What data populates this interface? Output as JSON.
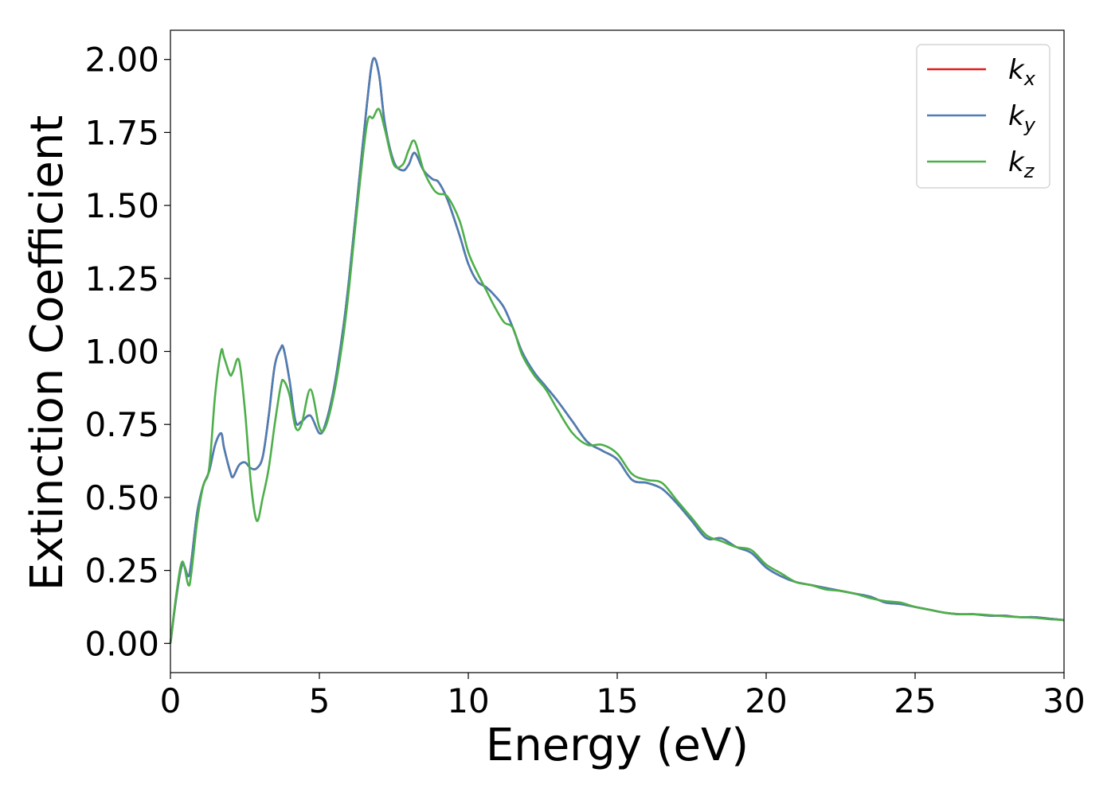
{
  "chart_data": {
    "type": "line",
    "title": "",
    "xlabel": "Energy (eV)",
    "ylabel": "Extinction Coefficient",
    "xlim": [
      0,
      30
    ],
    "ylim": [
      -0.1,
      2.1
    ],
    "xticks": [
      0,
      5,
      10,
      15,
      20,
      25,
      30
    ],
    "xtick_labels": [
      "0",
      "5",
      "10",
      "15",
      "20",
      "25",
      "30"
    ],
    "yticks": [
      0.0,
      0.25,
      0.5,
      0.75,
      1.0,
      1.25,
      1.5,
      1.75,
      2.0
    ],
    "ytick_labels": [
      "0.00",
      "0.25",
      "0.50",
      "0.75",
      "1.00",
      "1.25",
      "1.50",
      "1.75",
      "2.00"
    ],
    "grid": false,
    "legend_position": "top-right",
    "series": [
      {
        "name": "k_x",
        "label_main": "k",
        "label_sub": "x",
        "color": "#e41a1c",
        "x": [
          0,
          0.2,
          0.4,
          0.6,
          0.7,
          0.9,
          1.1,
          1.3,
          1.5,
          1.7,
          1.8,
          2.0,
          2.1,
          2.3,
          2.5,
          2.7,
          2.9,
          3.1,
          3.3,
          3.5,
          3.7,
          3.8,
          4.0,
          4.2,
          4.4,
          4.7,
          5.0,
          5.2,
          5.5,
          5.8,
          6.0,
          6.3,
          6.6,
          6.8,
          7.0,
          7.2,
          7.5,
          7.8,
          8.0,
          8.2,
          8.5,
          8.8,
          9.0,
          9.3,
          9.7,
          10.0,
          10.3,
          10.6,
          10.9,
          11.2,
          11.5,
          11.8,
          12.2,
          12.6,
          13.0,
          13.5,
          14.0,
          14.5,
          15.0,
          15.5,
          16.0,
          16.5,
          17.0,
          17.5,
          18.0,
          18.5,
          19.0,
          19.5,
          20.0,
          20.5,
          21.0,
          21.5,
          22.0,
          22.5,
          23.0,
          23.5,
          24.0,
          24.5,
          25.0,
          25.5,
          26.0,
          26.5,
          27.0,
          27.5,
          28.0,
          28.5,
          29.0,
          29.5,
          30.0
        ],
        "y": [
          0.0,
          0.16,
          0.27,
          0.23,
          0.28,
          0.45,
          0.54,
          0.59,
          0.68,
          0.72,
          0.67,
          0.59,
          0.57,
          0.61,
          0.62,
          0.6,
          0.6,
          0.64,
          0.78,
          0.95,
          1.01,
          1.01,
          0.9,
          0.76,
          0.76,
          0.78,
          0.72,
          0.75,
          0.88,
          1.08,
          1.25,
          1.55,
          1.85,
          2.0,
          1.95,
          1.78,
          1.65,
          1.62,
          1.64,
          1.68,
          1.62,
          1.59,
          1.58,
          1.52,
          1.4,
          1.3,
          1.24,
          1.22,
          1.19,
          1.15,
          1.08,
          1.0,
          0.93,
          0.88,
          0.83,
          0.76,
          0.69,
          0.66,
          0.63,
          0.56,
          0.55,
          0.53,
          0.48,
          0.42,
          0.36,
          0.36,
          0.33,
          0.31,
          0.26,
          0.23,
          0.21,
          0.2,
          0.19,
          0.18,
          0.17,
          0.16,
          0.14,
          0.135,
          0.125,
          0.115,
          0.105,
          0.1,
          0.1,
          0.095,
          0.095,
          0.09,
          0.09,
          0.085,
          0.08
        ]
      },
      {
        "name": "k_y",
        "label_main": "k",
        "label_sub": "y",
        "color": "#4a7fb5",
        "x": [
          0,
          0.2,
          0.4,
          0.6,
          0.7,
          0.9,
          1.1,
          1.3,
          1.5,
          1.7,
          1.8,
          2.0,
          2.1,
          2.3,
          2.5,
          2.7,
          2.9,
          3.1,
          3.3,
          3.5,
          3.7,
          3.8,
          4.0,
          4.2,
          4.4,
          4.7,
          5.0,
          5.2,
          5.5,
          5.8,
          6.0,
          6.3,
          6.6,
          6.8,
          7.0,
          7.2,
          7.5,
          7.8,
          8.0,
          8.2,
          8.5,
          8.8,
          9.0,
          9.3,
          9.7,
          10.0,
          10.3,
          10.6,
          10.9,
          11.2,
          11.5,
          11.8,
          12.2,
          12.6,
          13.0,
          13.5,
          14.0,
          14.5,
          15.0,
          15.5,
          16.0,
          16.5,
          17.0,
          17.5,
          18.0,
          18.5,
          19.0,
          19.5,
          20.0,
          20.5,
          21.0,
          21.5,
          22.0,
          22.5,
          23.0,
          23.5,
          24.0,
          24.5,
          25.0,
          25.5,
          26.0,
          26.5,
          27.0,
          27.5,
          28.0,
          28.5,
          29.0,
          29.5,
          30.0
        ],
        "y": [
          0.0,
          0.16,
          0.27,
          0.23,
          0.28,
          0.45,
          0.54,
          0.59,
          0.68,
          0.72,
          0.67,
          0.59,
          0.57,
          0.61,
          0.62,
          0.6,
          0.6,
          0.64,
          0.78,
          0.95,
          1.01,
          1.01,
          0.9,
          0.76,
          0.76,
          0.78,
          0.72,
          0.75,
          0.88,
          1.08,
          1.25,
          1.55,
          1.85,
          2.0,
          1.95,
          1.78,
          1.65,
          1.62,
          1.64,
          1.68,
          1.62,
          1.59,
          1.58,
          1.52,
          1.4,
          1.3,
          1.24,
          1.22,
          1.19,
          1.15,
          1.08,
          1.0,
          0.93,
          0.88,
          0.83,
          0.76,
          0.69,
          0.66,
          0.63,
          0.56,
          0.55,
          0.53,
          0.48,
          0.42,
          0.36,
          0.36,
          0.33,
          0.31,
          0.26,
          0.23,
          0.21,
          0.2,
          0.19,
          0.18,
          0.17,
          0.16,
          0.14,
          0.135,
          0.125,
          0.115,
          0.105,
          0.1,
          0.1,
          0.095,
          0.095,
          0.09,
          0.09,
          0.085,
          0.08
        ]
      },
      {
        "name": "k_z",
        "label_main": "k",
        "label_sub": "z",
        "color": "#4daf4a",
        "x": [
          0,
          0.2,
          0.4,
          0.6,
          0.7,
          0.9,
          1.1,
          1.3,
          1.5,
          1.7,
          1.8,
          2.0,
          2.1,
          2.3,
          2.5,
          2.7,
          2.9,
          3.1,
          3.3,
          3.5,
          3.7,
          3.8,
          4.0,
          4.2,
          4.4,
          4.7,
          5.0,
          5.2,
          5.5,
          5.8,
          6.0,
          6.3,
          6.6,
          6.8,
          7.0,
          7.2,
          7.5,
          7.8,
          8.0,
          8.2,
          8.5,
          8.8,
          9.0,
          9.3,
          9.7,
          10.0,
          10.3,
          10.6,
          10.9,
          11.2,
          11.5,
          11.8,
          12.2,
          12.6,
          13.0,
          13.5,
          14.0,
          14.5,
          15.0,
          15.5,
          16.0,
          16.5,
          17.0,
          17.5,
          18.0,
          18.5,
          19.0,
          19.5,
          20.0,
          20.5,
          21.0,
          21.5,
          22.0,
          22.5,
          23.0,
          23.5,
          24.0,
          24.5,
          25.0,
          25.5,
          26.0,
          26.5,
          27.0,
          27.5,
          28.0,
          28.5,
          29.0,
          29.5,
          30.0
        ],
        "y": [
          0.0,
          0.17,
          0.28,
          0.2,
          0.24,
          0.42,
          0.54,
          0.6,
          0.85,
          1.0,
          0.98,
          0.92,
          0.93,
          0.97,
          0.8,
          0.55,
          0.42,
          0.5,
          0.6,
          0.75,
          0.88,
          0.9,
          0.85,
          0.74,
          0.75,
          0.87,
          0.74,
          0.74,
          0.86,
          1.05,
          1.22,
          1.52,
          1.78,
          1.8,
          1.83,
          1.76,
          1.64,
          1.64,
          1.69,
          1.72,
          1.62,
          1.56,
          1.54,
          1.53,
          1.45,
          1.34,
          1.27,
          1.21,
          1.15,
          1.1,
          1.08,
          0.99,
          0.92,
          0.87,
          0.8,
          0.72,
          0.68,
          0.68,
          0.65,
          0.58,
          0.56,
          0.55,
          0.49,
          0.43,
          0.37,
          0.35,
          0.33,
          0.32,
          0.27,
          0.24,
          0.21,
          0.2,
          0.185,
          0.18,
          0.17,
          0.155,
          0.145,
          0.14,
          0.125,
          0.115,
          0.105,
          0.1,
          0.1,
          0.097,
          0.093,
          0.09,
          0.088,
          0.083,
          0.08
        ]
      }
    ]
  }
}
